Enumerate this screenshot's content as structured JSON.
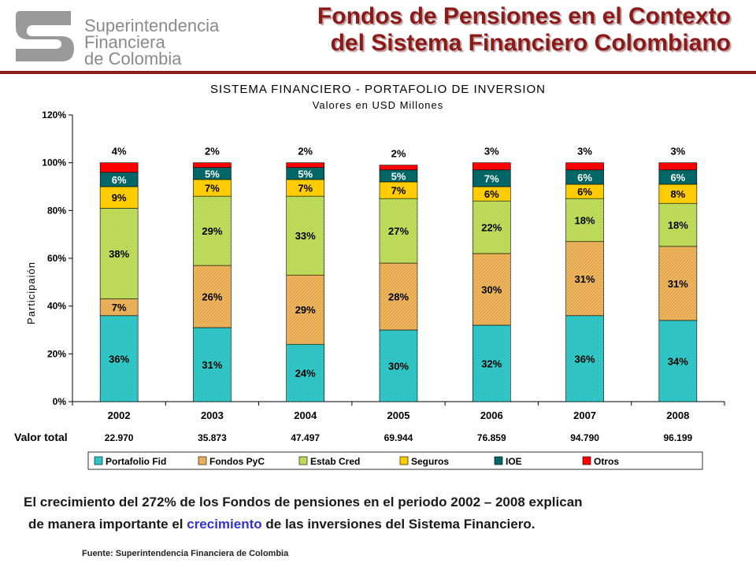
{
  "header": {
    "logo_lines": [
      "Superintendencia",
      "Financiera",
      "de Colombia"
    ],
    "title_line1": "Fondos de Pensiones en el Contexto",
    "title_line2": "del Sistema Financiero Colombiano"
  },
  "colors": {
    "brand": "#8b1a1a",
    "Portafolio Fid": "#33cccc",
    "Fondos PyC": "#f0b860",
    "Estab Cred": "#c4e060",
    "Seguros": "#ffcc00",
    "IOE": "#006666",
    "Otros": "#ff0000"
  },
  "chart_data": {
    "type": "bar",
    "stacked": true,
    "title": "SISTEMA FINANCIERO - PORTAFOLIO DE INVERSION",
    "subtitle": "Valores en USD Millones",
    "xlabel": "",
    "ylabel": "Participaión",
    "ylim": [
      0,
      120
    ],
    "yticks": [
      "0%",
      "20%",
      "40%",
      "60%",
      "80%",
      "100%",
      "120%"
    ],
    "categories": [
      "2002",
      "2003",
      "2004",
      "2005",
      "2006",
      "2007",
      "2008"
    ],
    "series": [
      {
        "name": "Portafolio Fid",
        "values": [
          36,
          31,
          24,
          30,
          32,
          36,
          34
        ],
        "labels": [
          "36%",
          "31%",
          "24%",
          "30%",
          "32%",
          "36%",
          "34%"
        ]
      },
      {
        "name": "Fondos PyC",
        "values": [
          7,
          26,
          29,
          28,
          30,
          31,
          31
        ],
        "labels": [
          "7%",
          "26%",
          "29%",
          "28%",
          "30%",
          "31%",
          "31%"
        ]
      },
      {
        "name": "Estab Cred",
        "values": [
          38,
          29,
          33,
          27,
          22,
          18,
          18
        ],
        "labels": [
          "38%",
          "29%",
          "33%",
          "27%",
          "22%",
          "18%",
          "18%"
        ]
      },
      {
        "name": "Seguros",
        "values": [
          9,
          7,
          7,
          7,
          6,
          6,
          8
        ],
        "labels": [
          "9%",
          "7%",
          "7%",
          "7%",
          "6%",
          "6%",
          "8%"
        ]
      },
      {
        "name": "IOE",
        "values": [
          6,
          5,
          5,
          5,
          7,
          6,
          6
        ],
        "labels": [
          "6%",
          "5%",
          "5%",
          "5%",
          "7%",
          "6%",
          "6%"
        ]
      },
      {
        "name": "Otros",
        "values": [
          4,
          2,
          2,
          2,
          3,
          3,
          3
        ],
        "labels": [
          "4%",
          "2%",
          "2%",
          "2%",
          "3%",
          "3%",
          "3%"
        ]
      }
    ],
    "valor_total_label": "Valor total",
    "valor_total": [
      "22.970",
      "35.873",
      "47.497",
      "69.944",
      "76.859",
      "94.790",
      "96.199"
    ],
    "legend": [
      "Portafolio Fid",
      "Fondos PyC",
      "Estab Cred",
      "Seguros",
      "IOE",
      "Otros"
    ],
    "legend_position": "bottom",
    "grid": false
  },
  "footer": {
    "text_part1": "El crecimiento del 272% de los Fondos de pensiones en el periodo 2002 – 2008 explican",
    "text_part2a": "de manera importante el ",
    "text_part2_highlight": "crecimiento",
    "text_part2b": " de las inversiones del Sistema Financiero.",
    "source": "Fuente:  Superintendencia Financiera de Colombia"
  }
}
